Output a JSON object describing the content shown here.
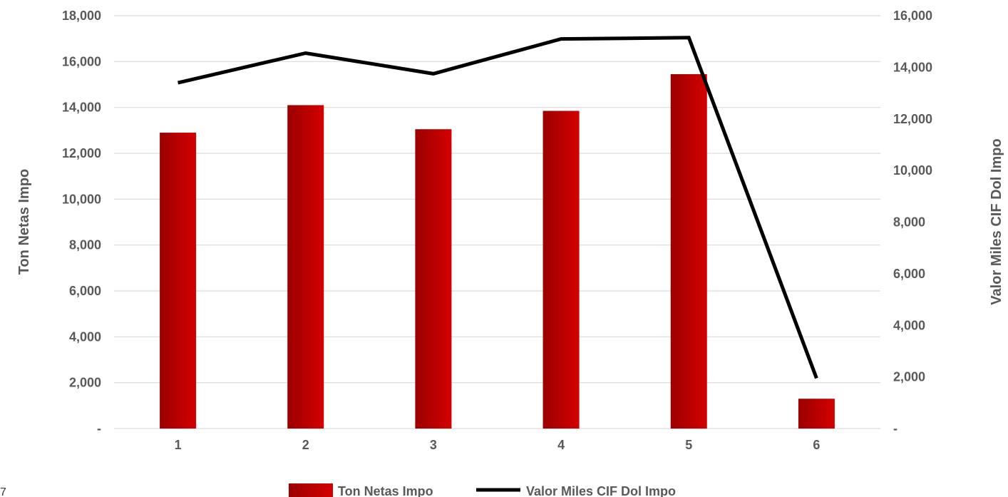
{
  "chart_data": {
    "type": "bar+line",
    "categories": [
      "1",
      "2",
      "3",
      "4",
      "5",
      "6"
    ],
    "series": [
      {
        "name": "Ton Netas Impo",
        "kind": "bar",
        "axis": "left",
        "values": [
          12900,
          14100,
          13050,
          13850,
          15450,
          1300
        ]
      },
      {
        "name": "Valor Miles CIF Dol Impo",
        "kind": "line",
        "axis": "right",
        "values": [
          13400,
          14550,
          13750,
          15100,
          15150,
          1950
        ]
      }
    ],
    "y_left": {
      "label": "Ton Netas Impo",
      "ylim": [
        0,
        18000
      ],
      "ticks": [
        "-",
        "2,000",
        "4,000",
        "6,000",
        "8,000",
        "10,000",
        "12,000",
        "14,000",
        "16,000",
        "18,000"
      ]
    },
    "y_right": {
      "label": "Valor Miles CIF Dol Impo",
      "ylim": [
        0,
        16000
      ],
      "ticks": [
        "-",
        "2,000",
        "4,000",
        "6,000",
        "8,000",
        "10,000",
        "12,000",
        "14,000",
        "16,000"
      ]
    },
    "grid": true,
    "legend_position": "bottom",
    "colors": {
      "bar_dark": "#9b0000",
      "bar_light": "#d40000",
      "line": "#000000",
      "grid": "#d9d9d9",
      "text": "#595959"
    }
  },
  "corner_mark": "7"
}
